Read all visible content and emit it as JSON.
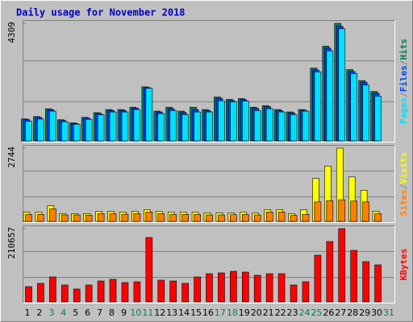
{
  "title": "Daily usage for November 2018",
  "chart_data": [
    {
      "type": "bar",
      "ylim": [
        0,
        4309
      ],
      "yticks": [
        4309
      ],
      "separator": "/",
      "series": [
        {
          "name": "Hits",
          "color": "#00805c",
          "values": [
            804,
            890,
            1178,
            775,
            660,
            861,
            1034,
            1149,
            1149,
            1235,
            1981,
            1091,
            1235,
            1091,
            1235,
            1149,
            1608,
            1522,
            1551,
            1235,
            1292,
            1149,
            1062,
            1149,
            2670,
            3474,
            4309,
            2613,
            2211,
            1809,
            null
          ]
        },
        {
          "name": "Files",
          "color": "#0040ff",
          "values": [
            780,
            860,
            1140,
            750,
            640,
            835,
            1000,
            1115,
            1115,
            1200,
            1950,
            1060,
            1180,
            1040,
            1150,
            1110,
            1560,
            1480,
            1510,
            1190,
            1250,
            1110,
            1030,
            1120,
            2600,
            3400,
            4200,
            2540,
            2150,
            1750,
            null
          ]
        },
        {
          "name": "Pages",
          "color": "#00e0ff",
          "values": [
            720,
            800,
            1090,
            700,
            610,
            790,
            960,
            1060,
            1060,
            1150,
            1930,
            1000,
            1110,
            960,
            1060,
            1060,
            1470,
            1430,
            1460,
            1110,
            1180,
            1060,
            960,
            1090,
            2530,
            3300,
            4110,
            2470,
            2050,
            1640,
            null
          ]
        }
      ]
    },
    {
      "type": "bar",
      "ylim": [
        0,
        2744
      ],
      "yticks": [
        2744
      ],
      "separator": "/",
      "series": [
        {
          "name": "Visits",
          "color": "#ffff00",
          "values": [
            350,
            350,
            584,
            292,
            292,
            292,
            380,
            380,
            350,
            380,
            438,
            380,
            350,
            350,
            350,
            320,
            320,
            320,
            350,
            320,
            438,
            438,
            292,
            438,
            1606,
            2073,
            2744,
            1664,
            1168,
            380,
            null
          ]
        },
        {
          "name": "Sites",
          "color": "#ff8000",
          "values": [
            260,
            260,
            470,
            240,
            240,
            230,
            290,
            290,
            270,
            290,
            350,
            290,
            260,
            260,
            260,
            240,
            240,
            250,
            260,
            240,
            350,
            350,
            220,
            260,
            730,
            780,
            810,
            760,
            730,
            290,
            null
          ]
        }
      ]
    },
    {
      "type": "bar",
      "ylim": [
        0,
        210657
      ],
      "yticks": [
        210657
      ],
      "categories": [
        "1",
        "2",
        "3",
        "4",
        "5",
        "6",
        "7",
        "8",
        "9",
        "10",
        "11",
        "12",
        "13",
        "14",
        "15",
        "16",
        "17",
        "18",
        "19",
        "20",
        "21",
        "22",
        "23",
        "24",
        "25",
        "26",
        "27",
        "28",
        "29",
        "30",
        "31"
      ],
      "category_colors": [
        "#000",
        "#000",
        "#00805c",
        "#00805c",
        "#000",
        "#000",
        "#000",
        "#000",
        "#000",
        "#00805c",
        "#00805c",
        "#000",
        "#000",
        "#000",
        "#000",
        "#000",
        "#00805c",
        "#00805c",
        "#000",
        "#000",
        "#000",
        "#000",
        "#000",
        "#00805c",
        "#00805c",
        "#000",
        "#000",
        "#000",
        "#000",
        "#000",
        "#00805c"
      ],
      "series": [
        {
          "name": "KBytes",
          "color": "#ff0000",
          "values": [
            43985,
            53245,
            71765,
            48615,
            37040,
            48615,
            60190,
            64820,
            55560,
            57875,
            185200,
            62505,
            60190,
            53245,
            71765,
            81025,
            83340,
            87970,
            85655,
            76395,
            81025,
            81025,
            48615,
            57875,
            134270,
            173625,
            210657,
            148160,
            115750,
            106490,
            null
          ]
        }
      ]
    }
  ]
}
